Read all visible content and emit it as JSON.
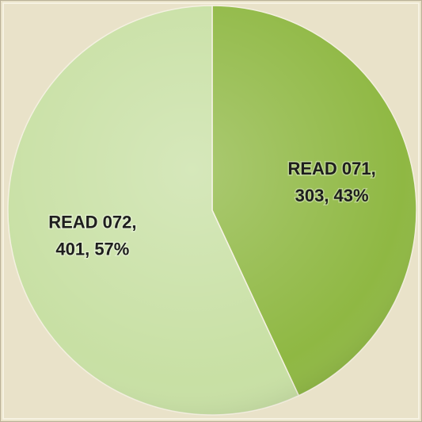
{
  "chart_data": {
    "type": "pie",
    "categories": [
      "READ 071",
      "READ 072"
    ],
    "values": [
      303,
      401
    ],
    "value_labels": [
      [
        "READ 071,",
        "303, 43%"
      ],
      [
        "READ 072,",
        "401, 57%"
      ]
    ],
    "colors": [
      "#8fb843",
      "#c8e0a4"
    ],
    "start_angle": 0,
    "direction": "clockwise"
  }
}
